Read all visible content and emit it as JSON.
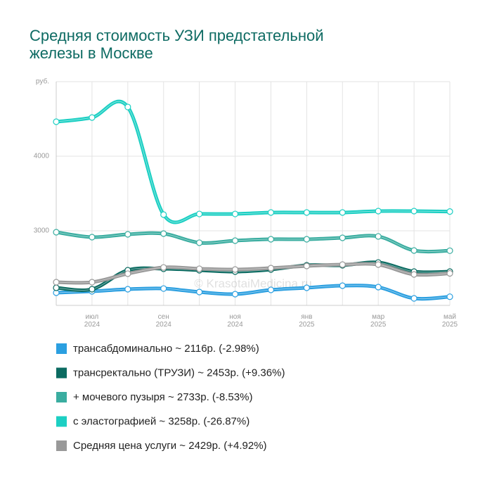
{
  "chart_data": {
    "type": "line",
    "title": [
      "Средняя стоимость УЗИ предстательной",
      "железы в Москве"
    ],
    "watermark": "© KrasotaiMedicina.ru",
    "categories": [
      null,
      "июл 2024",
      null,
      "сен 2024",
      null,
      "ноя 2024",
      null,
      "янв 2025",
      null,
      "мар 2025",
      null,
      "май 2025"
    ],
    "ylim": [
      2000,
      5000
    ],
    "yticks": [
      3000,
      4000,
      {
        "value": 5000,
        "label": "руб."
      }
    ],
    "grid": true,
    "series": [
      {
        "name": "трансабдоминально ~ 2116р. (-2.98%)",
        "color": "#2b9fe0",
        "values": [
          2170,
          2189,
          2217,
          2226,
          2179,
          2151,
          2208,
          2236,
          2264,
          2245,
          2094,
          2116
        ]
      },
      {
        "name": "трансректально (ТРУЗИ) ~ 2453р. (+9.36%)",
        "color": "#0b6b61",
        "values": [
          2236,
          2217,
          2472,
          2491,
          2472,
          2453,
          2481,
          2538,
          2538,
          2575,
          2453,
          2453
        ]
      },
      {
        "name": "+ мочевого пузыря ~ 2733р. (-8.53%)",
        "color": "#3aada0",
        "values": [
          2981,
          2915,
          2953,
          2962,
          2840,
          2868,
          2887,
          2887,
          2906,
          2925,
          2736,
          2733
        ]
      },
      {
        "name": "с эластографией ~ 3258р. (-26.87%)",
        "color": "#1ccfc3",
        "values": [
          4462,
          4519,
          4660,
          3217,
          3226,
          3226,
          3245,
          3245,
          3245,
          3264,
          3264,
          3258
        ]
      },
      {
        "name": "Средняя цена услуги ~ 2429р. (+4.92%)",
        "color": "#999999",
        "values": [
          2311,
          2311,
          2425,
          2509,
          2491,
          2481,
          2500,
          2528,
          2547,
          2547,
          2415,
          2429
        ]
      }
    ]
  }
}
